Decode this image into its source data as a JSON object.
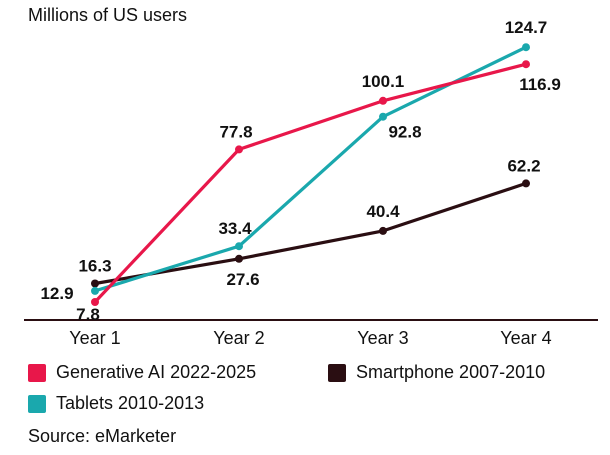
{
  "chart_data": {
    "type": "line",
    "title": "",
    "ylabel": "Millions of US users",
    "xlabel": "",
    "categories": [
      "Year 1",
      "Year 2",
      "Year 3",
      "Year 4"
    ],
    "ylim": [
      0,
      130
    ],
    "grid": false,
    "legend_placement": "bottom",
    "series": [
      {
        "name": "Generative AI 2022-2025",
        "values": [
          7.8,
          77.8,
          100.1,
          116.9
        ],
        "color": "#e8174a"
      },
      {
        "name": "Tablets 2010-2013",
        "values": [
          12.9,
          33.4,
          92.8,
          124.7
        ],
        "color": "#1aa8ad"
      },
      {
        "name": "Smartphone 2007-2010",
        "values": [
          16.3,
          27.6,
          40.4,
          62.2
        ],
        "color": "#2a0e12"
      }
    ]
  },
  "source": "Source: eMarketer"
}
